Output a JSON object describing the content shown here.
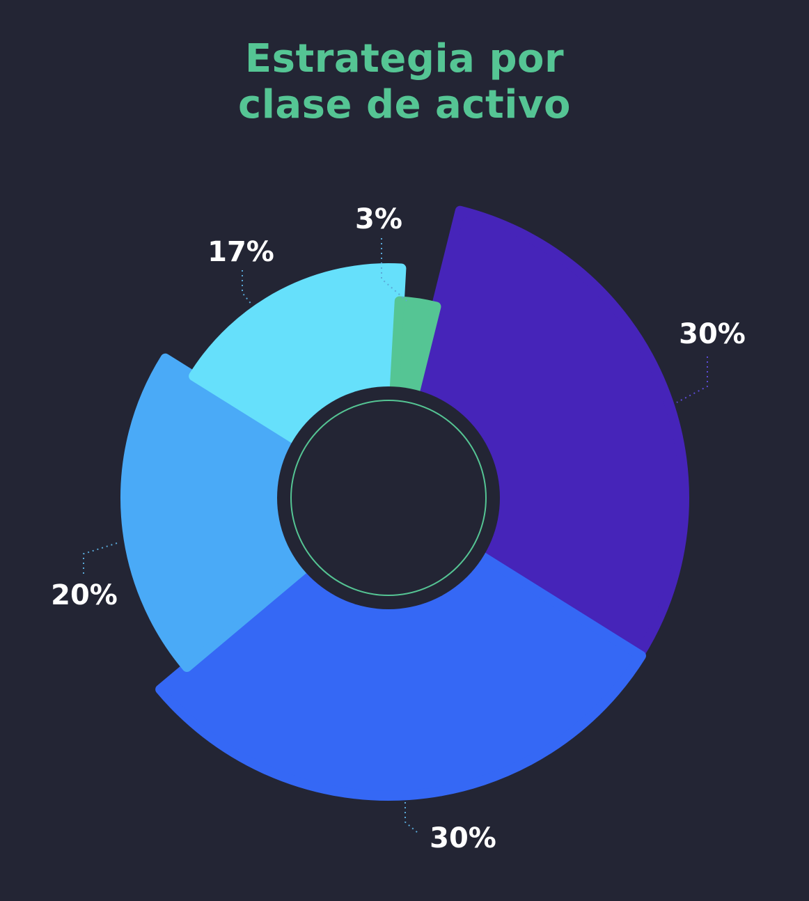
{
  "colors": {
    "background": "#232534",
    "title": "#55c594",
    "center_ring": "#55c594",
    "label_text": "#ffffff"
  },
  "chart_data": {
    "type": "pie",
    "variant": "variable-radius donut",
    "title_lines": [
      "Estrategia por",
      "clase de activo"
    ],
    "slices": [
      {
        "value": 30,
        "label": "30%",
        "color": "#4624b9"
      },
      {
        "value": 30,
        "label": "30%",
        "color": "#3568f5"
      },
      {
        "value": 20,
        "label": "20%",
        "color": "#4aaaf7"
      },
      {
        "value": 17,
        "label": "17%",
        "color": "#66e0fb"
      },
      {
        "value": 3,
        "label": "3%",
        "color": "#55c594"
      }
    ],
    "start_angle_deg": 14,
    "direction": "clockwise",
    "legend": "none"
  }
}
